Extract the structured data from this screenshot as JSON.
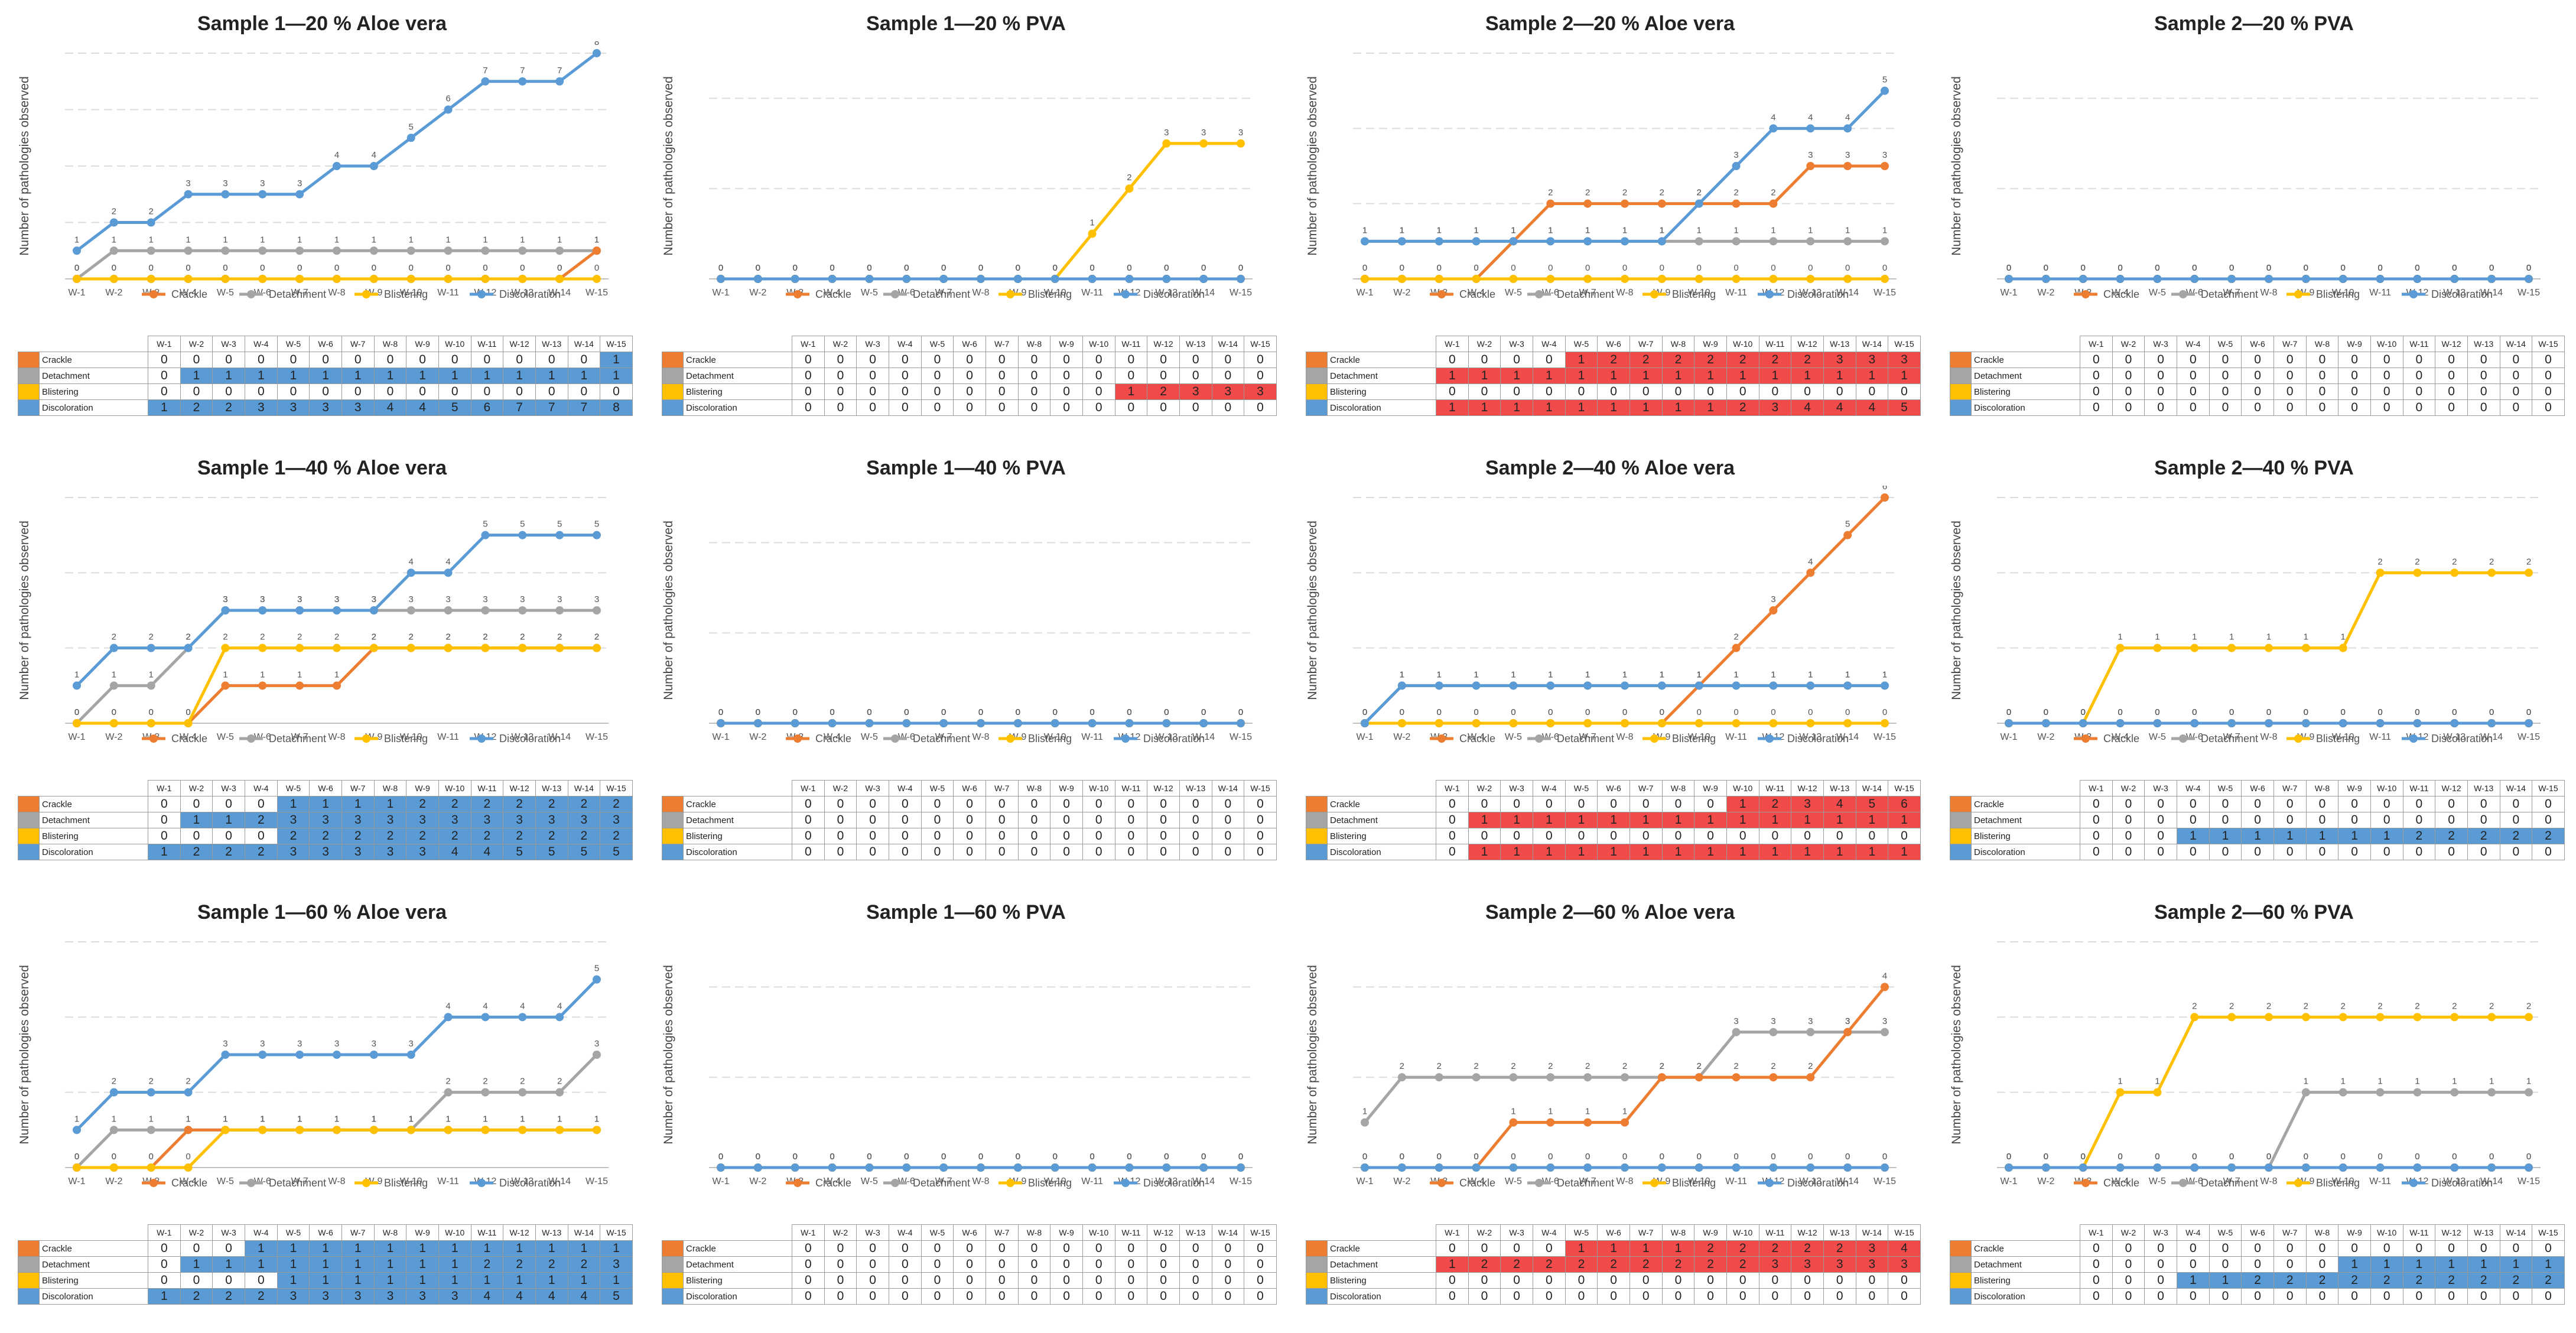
{
  "weeks": [
    "W-1",
    "W-2",
    "W-3",
    "W-4",
    "W-5",
    "W-6",
    "W-7",
    "W-8",
    "W-9",
    "W-10",
    "W-11",
    "W-12",
    "W-13",
    "W-14",
    "W-15"
  ],
  "legend": {
    "crackle": "Crackle",
    "detachment": "Detachment",
    "blistering": "Blistering",
    "discoloration": "Discoloration"
  },
  "ylabel": "Number of pathologies observed",
  "colors": {
    "crackle": "#ED7D31",
    "detachment": "#A5A5A5",
    "blistering": "#FFC000",
    "discoloration": "#5B9BD5",
    "highlight_blue": "#5B9BD5",
    "highlight_red": "#F04A4A"
  },
  "chart_data": [
    {
      "type": "line",
      "title": "Sample 1—20 % Aloe vera",
      "ymax": 8,
      "highlight": "blue",
      "series": [
        {
          "name": "Crackle",
          "values": [
            0,
            0,
            0,
            0,
            0,
            0,
            0,
            0,
            0,
            0,
            0,
            0,
            0,
            0,
            1
          ]
        },
        {
          "name": "Detachment",
          "values": [
            0,
            1,
            1,
            1,
            1,
            1,
            1,
            1,
            1,
            1,
            1,
            1,
            1,
            1,
            1
          ]
        },
        {
          "name": "Blistering",
          "values": [
            0,
            0,
            0,
            0,
            0,
            0,
            0,
            0,
            0,
            0,
            0,
            0,
            0,
            0,
            0
          ]
        },
        {
          "name": "Discoloration",
          "values": [
            1,
            2,
            2,
            3,
            3,
            3,
            3,
            4,
            4,
            5,
            6,
            7,
            7,
            7,
            8
          ]
        }
      ]
    },
    {
      "type": "line",
      "title": "Sample 1—20 % PVA",
      "ymax": 5,
      "highlight": "red",
      "series": [
        {
          "name": "Crackle",
          "values": [
            0,
            0,
            0,
            0,
            0,
            0,
            0,
            0,
            0,
            0,
            0,
            0,
            0,
            0,
            0
          ]
        },
        {
          "name": "Detachment",
          "values": [
            0,
            0,
            0,
            0,
            0,
            0,
            0,
            0,
            0,
            0,
            0,
            0,
            0,
            0,
            0
          ]
        },
        {
          "name": "Blistering",
          "values": [
            0,
            0,
            0,
            0,
            0,
            0,
            0,
            0,
            0,
            0,
            1,
            2,
            3,
            3,
            3
          ]
        },
        {
          "name": "Discoloration",
          "values": [
            0,
            0,
            0,
            0,
            0,
            0,
            0,
            0,
            0,
            0,
            0,
            0,
            0,
            0,
            0
          ]
        }
      ]
    },
    {
      "type": "line",
      "title": "Sample 2—20 % Aloe vera",
      "ymax": 6,
      "highlight": "red",
      "series": [
        {
          "name": "Crackle",
          "values": [
            0,
            0,
            0,
            0,
            1,
            2,
            2,
            2,
            2,
            2,
            2,
            2,
            3,
            3,
            3
          ]
        },
        {
          "name": "Detachment",
          "values": [
            1,
            1,
            1,
            1,
            1,
            1,
            1,
            1,
            1,
            1,
            1,
            1,
            1,
            1,
            1
          ]
        },
        {
          "name": "Blistering",
          "values": [
            0,
            0,
            0,
            0,
            0,
            0,
            0,
            0,
            0,
            0,
            0,
            0,
            0,
            0,
            0
          ]
        },
        {
          "name": "Discoloration",
          "values": [
            1,
            1,
            1,
            1,
            1,
            1,
            1,
            1,
            1,
            2,
            3,
            4,
            4,
            4,
            5
          ]
        }
      ]
    },
    {
      "type": "line",
      "title": "Sample 2—20 % PVA",
      "ymax": 5,
      "highlight": "none",
      "series": [
        {
          "name": "Crackle",
          "values": [
            0,
            0,
            0,
            0,
            0,
            0,
            0,
            0,
            0,
            0,
            0,
            0,
            0,
            0,
            0
          ]
        },
        {
          "name": "Detachment",
          "values": [
            0,
            0,
            0,
            0,
            0,
            0,
            0,
            0,
            0,
            0,
            0,
            0,
            0,
            0,
            0
          ]
        },
        {
          "name": "Blistering",
          "values": [
            0,
            0,
            0,
            0,
            0,
            0,
            0,
            0,
            0,
            0,
            0,
            0,
            0,
            0,
            0
          ]
        },
        {
          "name": "Discoloration",
          "values": [
            0,
            0,
            0,
            0,
            0,
            0,
            0,
            0,
            0,
            0,
            0,
            0,
            0,
            0,
            0
          ]
        }
      ]
    },
    {
      "type": "line",
      "title": "Sample 1—40 % Aloe vera",
      "ymax": 6,
      "highlight": "blue",
      "series": [
        {
          "name": "Crackle",
          "values": [
            0,
            0,
            0,
            0,
            1,
            1,
            1,
            1,
            2,
            2,
            2,
            2,
            2,
            2,
            2
          ]
        },
        {
          "name": "Detachment",
          "values": [
            0,
            1,
            1,
            2,
            3,
            3,
            3,
            3,
            3,
            3,
            3,
            3,
            3,
            3,
            3
          ]
        },
        {
          "name": "Blistering",
          "values": [
            0,
            0,
            0,
            0,
            2,
            2,
            2,
            2,
            2,
            2,
            2,
            2,
            2,
            2,
            2
          ]
        },
        {
          "name": "Discoloration",
          "values": [
            1,
            2,
            2,
            2,
            3,
            3,
            3,
            3,
            3,
            4,
            4,
            5,
            5,
            5,
            5
          ]
        }
      ]
    },
    {
      "type": "line",
      "title": "Sample 1—40 % PVA",
      "ymax": 5,
      "highlight": "none",
      "series": [
        {
          "name": "Crackle",
          "values": [
            0,
            0,
            0,
            0,
            0,
            0,
            0,
            0,
            0,
            0,
            0,
            0,
            0,
            0,
            0
          ]
        },
        {
          "name": "Detachment",
          "values": [
            0,
            0,
            0,
            0,
            0,
            0,
            0,
            0,
            0,
            0,
            0,
            0,
            0,
            0,
            0
          ]
        },
        {
          "name": "Blistering",
          "values": [
            0,
            0,
            0,
            0,
            0,
            0,
            0,
            0,
            0,
            0,
            0,
            0,
            0,
            0,
            0
          ]
        },
        {
          "name": "Discoloration",
          "values": [
            0,
            0,
            0,
            0,
            0,
            0,
            0,
            0,
            0,
            0,
            0,
            0,
            0,
            0,
            0
          ]
        }
      ]
    },
    {
      "type": "line",
      "title": "Sample 2—40 % Aloe vera",
      "ymax": 6,
      "highlight": "red",
      "series": [
        {
          "name": "Crackle",
          "values": [
            0,
            0,
            0,
            0,
            0,
            0,
            0,
            0,
            0,
            1,
            2,
            3,
            4,
            5,
            6
          ]
        },
        {
          "name": "Detachment",
          "values": [
            0,
            1,
            1,
            1,
            1,
            1,
            1,
            1,
            1,
            1,
            1,
            1,
            1,
            1,
            1
          ]
        },
        {
          "name": "Blistering",
          "values": [
            0,
            0,
            0,
            0,
            0,
            0,
            0,
            0,
            0,
            0,
            0,
            0,
            0,
            0,
            0
          ]
        },
        {
          "name": "Discoloration",
          "values": [
            0,
            1,
            1,
            1,
            1,
            1,
            1,
            1,
            1,
            1,
            1,
            1,
            1,
            1,
            1
          ]
        }
      ]
    },
    {
      "type": "line",
      "title": "Sample 2—40 % PVA",
      "ymax": 3,
      "highlight": "blue",
      "series": [
        {
          "name": "Crackle",
          "values": [
            0,
            0,
            0,
            0,
            0,
            0,
            0,
            0,
            0,
            0,
            0,
            0,
            0,
            0,
            0
          ]
        },
        {
          "name": "Detachment",
          "values": [
            0,
            0,
            0,
            0,
            0,
            0,
            0,
            0,
            0,
            0,
            0,
            0,
            0,
            0,
            0
          ]
        },
        {
          "name": "Blistering",
          "values": [
            0,
            0,
            0,
            1,
            1,
            1,
            1,
            1,
            1,
            1,
            2,
            2,
            2,
            2,
            2
          ]
        },
        {
          "name": "Discoloration",
          "values": [
            0,
            0,
            0,
            0,
            0,
            0,
            0,
            0,
            0,
            0,
            0,
            0,
            0,
            0,
            0
          ]
        }
      ]
    },
    {
      "type": "line",
      "title": "Sample 1—60 % Aloe vera",
      "ymax": 6,
      "highlight": "blue",
      "series": [
        {
          "name": "Crackle",
          "values": [
            0,
            0,
            0,
            1,
            1,
            1,
            1,
            1,
            1,
            1,
            1,
            1,
            1,
            1,
            1
          ]
        },
        {
          "name": "Detachment",
          "values": [
            0,
            1,
            1,
            1,
            1,
            1,
            1,
            1,
            1,
            1,
            2,
            2,
            2,
            2,
            3
          ]
        },
        {
          "name": "Blistering",
          "values": [
            0,
            0,
            0,
            0,
            1,
            1,
            1,
            1,
            1,
            1,
            1,
            1,
            1,
            1,
            1
          ]
        },
        {
          "name": "Discoloration",
          "values": [
            1,
            2,
            2,
            2,
            3,
            3,
            3,
            3,
            3,
            3,
            4,
            4,
            4,
            4,
            5
          ]
        }
      ]
    },
    {
      "type": "line",
      "title": "Sample 1—60 % PVA",
      "ymax": 5,
      "highlight": "none",
      "series": [
        {
          "name": "Crackle",
          "values": [
            0,
            0,
            0,
            0,
            0,
            0,
            0,
            0,
            0,
            0,
            0,
            0,
            0,
            0,
            0
          ]
        },
        {
          "name": "Detachment",
          "values": [
            0,
            0,
            0,
            0,
            0,
            0,
            0,
            0,
            0,
            0,
            0,
            0,
            0,
            0,
            0
          ]
        },
        {
          "name": "Blistering",
          "values": [
            0,
            0,
            0,
            0,
            0,
            0,
            0,
            0,
            0,
            0,
            0,
            0,
            0,
            0,
            0
          ]
        },
        {
          "name": "Discoloration",
          "values": [
            0,
            0,
            0,
            0,
            0,
            0,
            0,
            0,
            0,
            0,
            0,
            0,
            0,
            0,
            0
          ]
        }
      ]
    },
    {
      "type": "line",
      "title": "Sample 2—60 % Aloe vera",
      "ymax": 5,
      "highlight": "red",
      "series": [
        {
          "name": "Crackle",
          "values": [
            0,
            0,
            0,
            0,
            1,
            1,
            1,
            1,
            2,
            2,
            2,
            2,
            2,
            3,
            4
          ]
        },
        {
          "name": "Detachment",
          "values": [
            1,
            2,
            2,
            2,
            2,
            2,
            2,
            2,
            2,
            2,
            3,
            3,
            3,
            3,
            3
          ]
        },
        {
          "name": "Blistering",
          "values": [
            0,
            0,
            0,
            0,
            0,
            0,
            0,
            0,
            0,
            0,
            0,
            0,
            0,
            0,
            0
          ]
        },
        {
          "name": "Discoloration",
          "values": [
            0,
            0,
            0,
            0,
            0,
            0,
            0,
            0,
            0,
            0,
            0,
            0,
            0,
            0,
            0
          ]
        }
      ]
    },
    {
      "type": "line",
      "title": "Sample 2—60 % PVA",
      "ymax": 3,
      "highlight": "blue",
      "series": [
        {
          "name": "Crackle",
          "values": [
            0,
            0,
            0,
            0,
            0,
            0,
            0,
            0,
            0,
            0,
            0,
            0,
            0,
            0,
            0
          ]
        },
        {
          "name": "Detachment",
          "values": [
            0,
            0,
            0,
            0,
            0,
            0,
            0,
            0,
            1,
            1,
            1,
            1,
            1,
            1,
            1
          ]
        },
        {
          "name": "Blistering",
          "values": [
            0,
            0,
            0,
            1,
            1,
            2,
            2,
            2,
            2,
            2,
            2,
            2,
            2,
            2,
            2
          ]
        },
        {
          "name": "Discoloration",
          "values": [
            0,
            0,
            0,
            0,
            0,
            0,
            0,
            0,
            0,
            0,
            0,
            0,
            0,
            0,
            0
          ]
        }
      ]
    }
  ]
}
